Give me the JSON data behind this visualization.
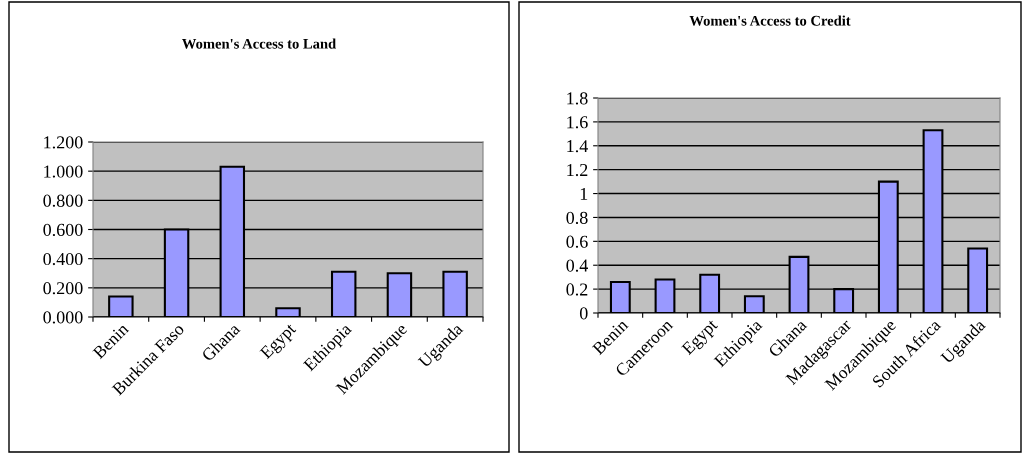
{
  "chart_data": [
    {
      "type": "bar",
      "title": "Women's Access to Land",
      "categories": [
        "Benin",
        "Burkina Faso",
        "Ghana",
        "Egypt",
        "Ethiopia",
        "Mozambique",
        "Uganda"
      ],
      "values": [
        0.14,
        0.6,
        1.03,
        0.06,
        0.31,
        0.3,
        0.31
      ],
      "color": "#9999ff",
      "ylim": [
        0,
        1.2
      ],
      "yticks": [
        {
          "value": 0,
          "label": "0.000"
        },
        {
          "value": 0.2,
          "label": "0.200"
        },
        {
          "value": 0.4,
          "label": "0.400"
        },
        {
          "value": 0.6,
          "label": "0.600"
        },
        {
          "value": 0.8,
          "label": "0.800"
        },
        {
          "value": 1,
          "label": "1.000"
        },
        {
          "value": 1.2,
          "label": "1.200"
        }
      ],
      "grid": "y"
    },
    {
      "type": "bar",
      "title": "Women's Access to Credit",
      "categories": [
        "Benin",
        "Cameroon",
        "Egypt",
        "Ethiopia",
        "Ghana",
        "Madagascar",
        "Mozambique",
        "South Africa",
        "Uganda"
      ],
      "values": [
        0.26,
        0.28,
        0.32,
        0.14,
        0.47,
        0.2,
        1.1,
        1.53,
        0.54
      ],
      "color": "#9999ff",
      "ylim": [
        0,
        1.8
      ],
      "yticks": [
        0,
        0.2,
        0.4,
        0.6,
        0.8,
        1,
        1.2,
        1.4,
        1.6,
        1.8
      ],
      "grid": "y"
    }
  ]
}
